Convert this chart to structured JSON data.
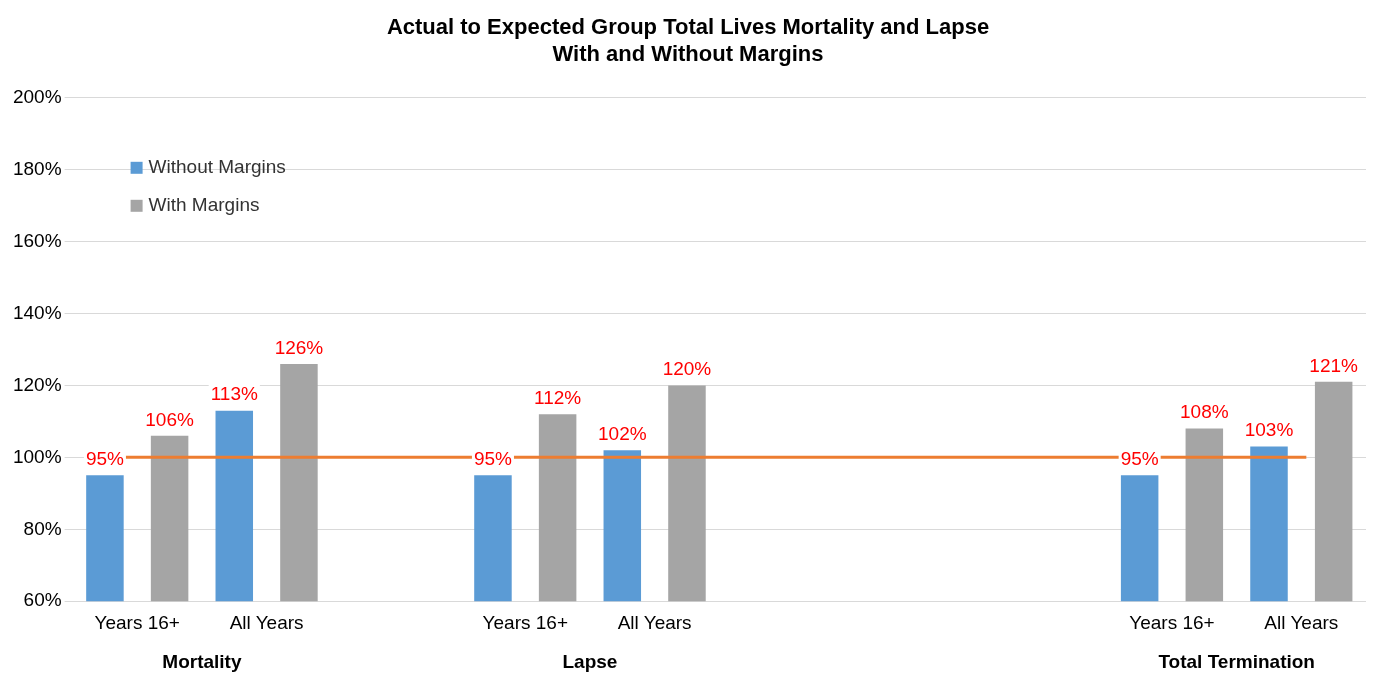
{
  "chart_data": {
    "type": "bar",
    "title": "Actual to Expected Group Total Lives Mortality and Lapse\nWith and Without Margins",
    "categories": [
      "Years 16+",
      "All Years",
      null,
      "Years 16+",
      "All Years",
      null,
      null,
      null,
      "Years 16+",
      "All Years"
    ],
    "series": [
      {
        "name": "Without Margins",
        "color": "#5b9bd5",
        "values": [
          95,
          113,
          null,
          95,
          102,
          null,
          null,
          null,
          95,
          103
        ],
        "value_labels": [
          "95%",
          "113%",
          null,
          "95%",
          "102%",
          null,
          null,
          null,
          "95%",
          "103%"
        ]
      },
      {
        "name": "With Margins",
        "color": "#a5a5a5",
        "values": [
          106,
          126,
          null,
          112,
          120,
          null,
          null,
          null,
          108,
          121
        ],
        "value_labels": [
          "106%",
          "126%",
          null,
          "112%",
          "120%",
          null,
          null,
          null,
          "108%",
          "121%"
        ]
      }
    ],
    "ylim": [
      60,
      200
    ],
    "yticks": [
      {
        "value": 60,
        "label": "60%"
      },
      {
        "value": 80,
        "label": "80%"
      },
      {
        "value": 100,
        "label": "100%"
      },
      {
        "value": 120,
        "label": "120%"
      },
      {
        "value": 140,
        "label": "140%"
      },
      {
        "value": 160,
        "label": "160%"
      },
      {
        "value": 180,
        "label": "180%"
      },
      {
        "value": 200,
        "label": "200%"
      }
    ],
    "grid": "y",
    "legend": "top left",
    "ref_lines": [
      {
        "axis": "y",
        "value": 100,
        "color": "#ed7d31"
      }
    ],
    "annotations": [
      "Mortality",
      "Lapse",
      "Total Termination"
    ]
  }
}
